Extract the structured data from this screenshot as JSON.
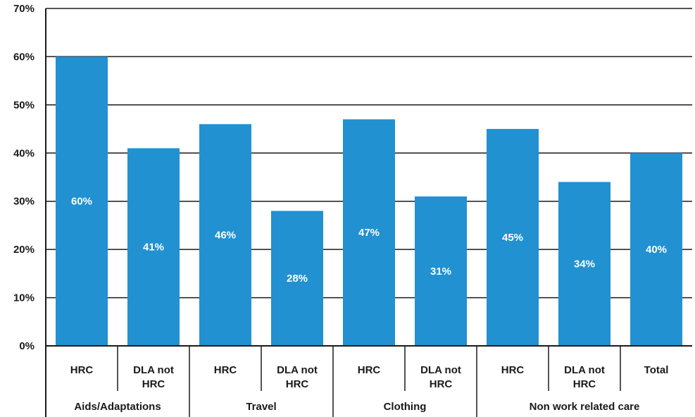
{
  "chart_data": {
    "type": "bar",
    "title": "",
    "xlabel": "",
    "ylabel": "",
    "ylim": [
      0,
      70
    ],
    "y_ticks": [
      0,
      10,
      20,
      30,
      40,
      50,
      60,
      70
    ],
    "y_tick_labels": [
      "0%",
      "10%",
      "20%",
      "30%",
      "40%",
      "50%",
      "60%",
      "70%"
    ],
    "grid": true,
    "legend": "none",
    "bar_color": "#2191d1",
    "categories": [
      {
        "label": "HRC",
        "group": "Aids/Adaptations",
        "value": 60,
        "value_label": "60%"
      },
      {
        "label": "DLA not HRC",
        "group": "Aids/Adaptations",
        "value": 41,
        "value_label": "41%"
      },
      {
        "label": "HRC",
        "group": "Travel",
        "value": 46,
        "value_label": "46%"
      },
      {
        "label": "DLA not HRC",
        "group": "Travel",
        "value": 28,
        "value_label": "28%"
      },
      {
        "label": "HRC",
        "group": "Clothing",
        "value": 47,
        "value_label": "47%"
      },
      {
        "label": "DLA not HRC",
        "group": "Clothing",
        "value": 31,
        "value_label": "31%"
      },
      {
        "label": "HRC",
        "group": "Non work related care",
        "value": 45,
        "value_label": "45%"
      },
      {
        "label": "DLA not HRC",
        "group": "Non work related care",
        "value": 34,
        "value_label": "34%"
      },
      {
        "label": "Total",
        "group": "",
        "value": 40,
        "value_label": "40%"
      }
    ],
    "groups": [
      {
        "label": "Aids/Adaptations",
        "span": 2
      },
      {
        "label": "Travel",
        "span": 2
      },
      {
        "label": "Clothing",
        "span": 2
      },
      {
        "label": "Non work related care",
        "span": 3
      }
    ]
  }
}
